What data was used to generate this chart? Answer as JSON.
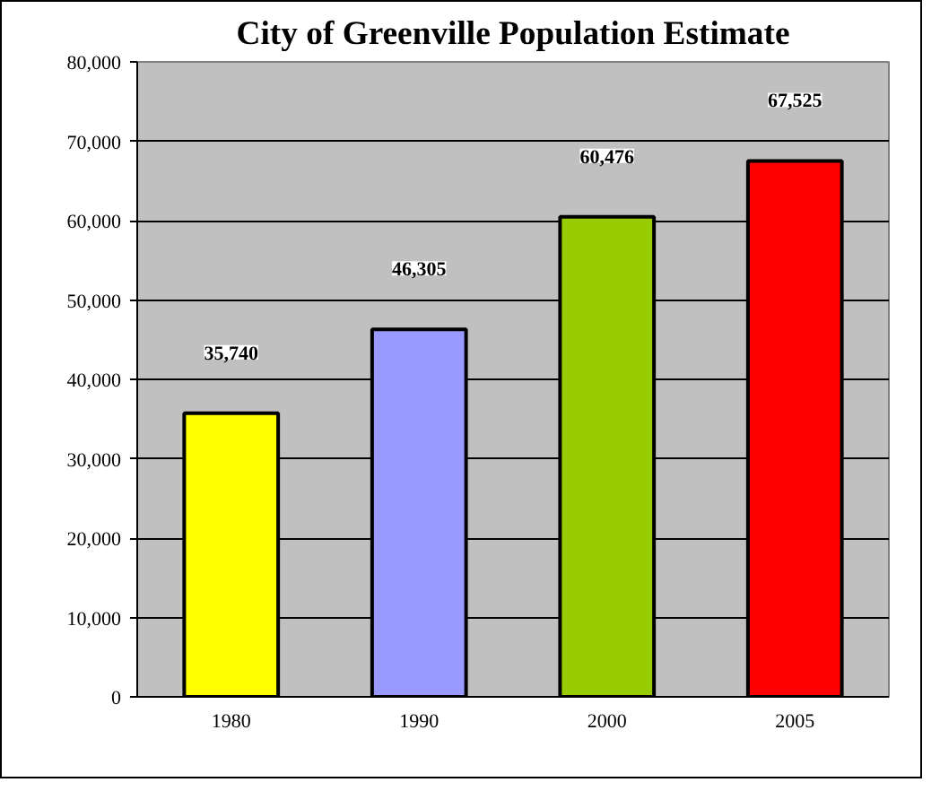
{
  "chart_data": {
    "type": "bar",
    "title": "City of Greenville Population Estimate",
    "categories": [
      "1980",
      "1990",
      "2000",
      "2005"
    ],
    "values": [
      35740,
      46305,
      60476,
      67525
    ],
    "colors": [
      "#ffff00",
      "#9999ff",
      "#99cc00",
      "#ff0000"
    ],
    "ylim": [
      0,
      80000
    ],
    "yticks": [
      {
        "value": 0,
        "label": "0"
      },
      {
        "value": 10000,
        "label": "10,000"
      },
      {
        "value": 20000,
        "label": "20,000"
      },
      {
        "value": 30000,
        "label": "30,000"
      },
      {
        "value": 40000,
        "label": "40,000"
      },
      {
        "value": 50000,
        "label": "50,000"
      },
      {
        "value": 60000,
        "label": "60,000"
      },
      {
        "value": 70000,
        "label": "70,000"
      },
      {
        "value": 80000,
        "label": "80,000"
      }
    ],
    "value_labels": [
      "35,740",
      "46,305",
      "60,476",
      "67,525"
    ],
    "grid": "y"
  }
}
